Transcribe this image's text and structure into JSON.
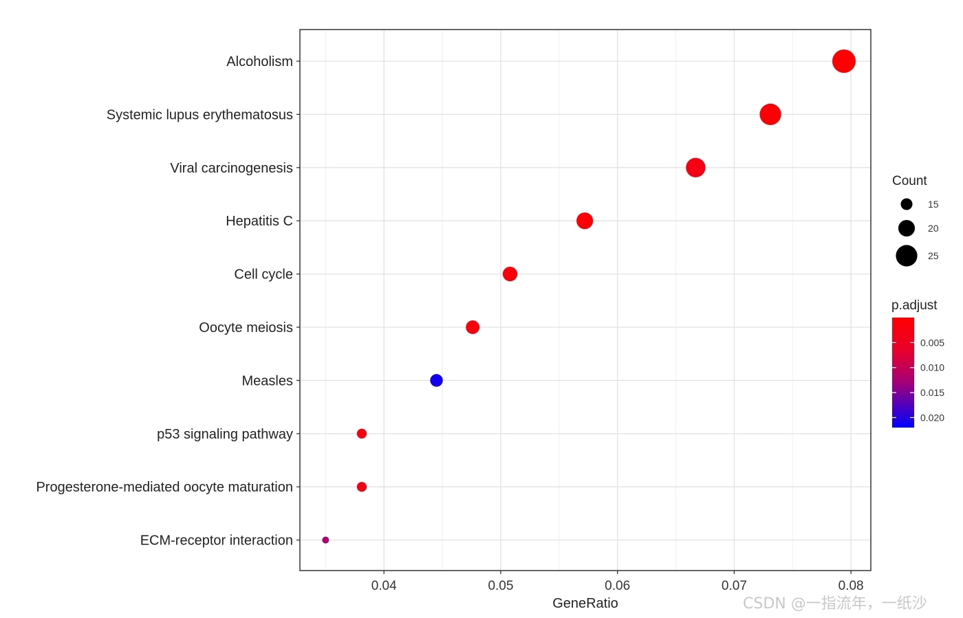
{
  "chart_data": {
    "type": "scatter",
    "xlabel": "GeneRatio",
    "x_ticks": [
      "0.04",
      "0.05",
      "0.06",
      "0.07",
      "0.08"
    ],
    "xlim": [
      0.0328,
      0.0817
    ],
    "grid": true,
    "points": [
      {
        "category": "Alcoholism",
        "x": 0.0794,
        "count": 27,
        "p_adjust": 0.0003
      },
      {
        "category": "Systemic lupus erythematosus",
        "x": 0.0731,
        "count": 25,
        "p_adjust": 0.0008
      },
      {
        "category": "Viral carcinogenesis",
        "x": 0.0667,
        "count": 23,
        "p_adjust": 0.003
      },
      {
        "category": "Hepatitis C",
        "x": 0.0572,
        "count": 20,
        "p_adjust": 0.001
      },
      {
        "category": "Cell cycle",
        "x": 0.0508,
        "count": 18,
        "p_adjust": 0.0012
      },
      {
        "category": "Oocyte meiosis",
        "x": 0.0476,
        "count": 17,
        "p_adjust": 0.0018
      },
      {
        "category": "Measles",
        "x": 0.0445,
        "count": 16,
        "p_adjust": 0.021
      },
      {
        "category": "p53 signaling pathway",
        "x": 0.0381,
        "count": 13,
        "p_adjust": 0.002
      },
      {
        "category": "Progesterone-mediated oocyte maturation",
        "x": 0.0381,
        "count": 13,
        "p_adjust": 0.003
      },
      {
        "category": "ECM-receptor interaction",
        "x": 0.035,
        "count": 10,
        "p_adjust": 0.012
      }
    ],
    "size_legend": {
      "title": "Count",
      "values": [
        15,
        20,
        25
      ],
      "labels": [
        "15",
        "20",
        "25"
      ]
    },
    "color_legend": {
      "title": "p.adjust",
      "range": [
        0.0,
        0.022
      ],
      "ticks": [
        0.005,
        0.01,
        0.015,
        0.02
      ],
      "labels": [
        "0.005",
        "0.010",
        "0.015",
        "0.020"
      ],
      "low_color": "#ff0000",
      "high_color": "#0000ff"
    },
    "legend_position": "right"
  },
  "watermark": "CSDN @一指流年，一纸沙"
}
